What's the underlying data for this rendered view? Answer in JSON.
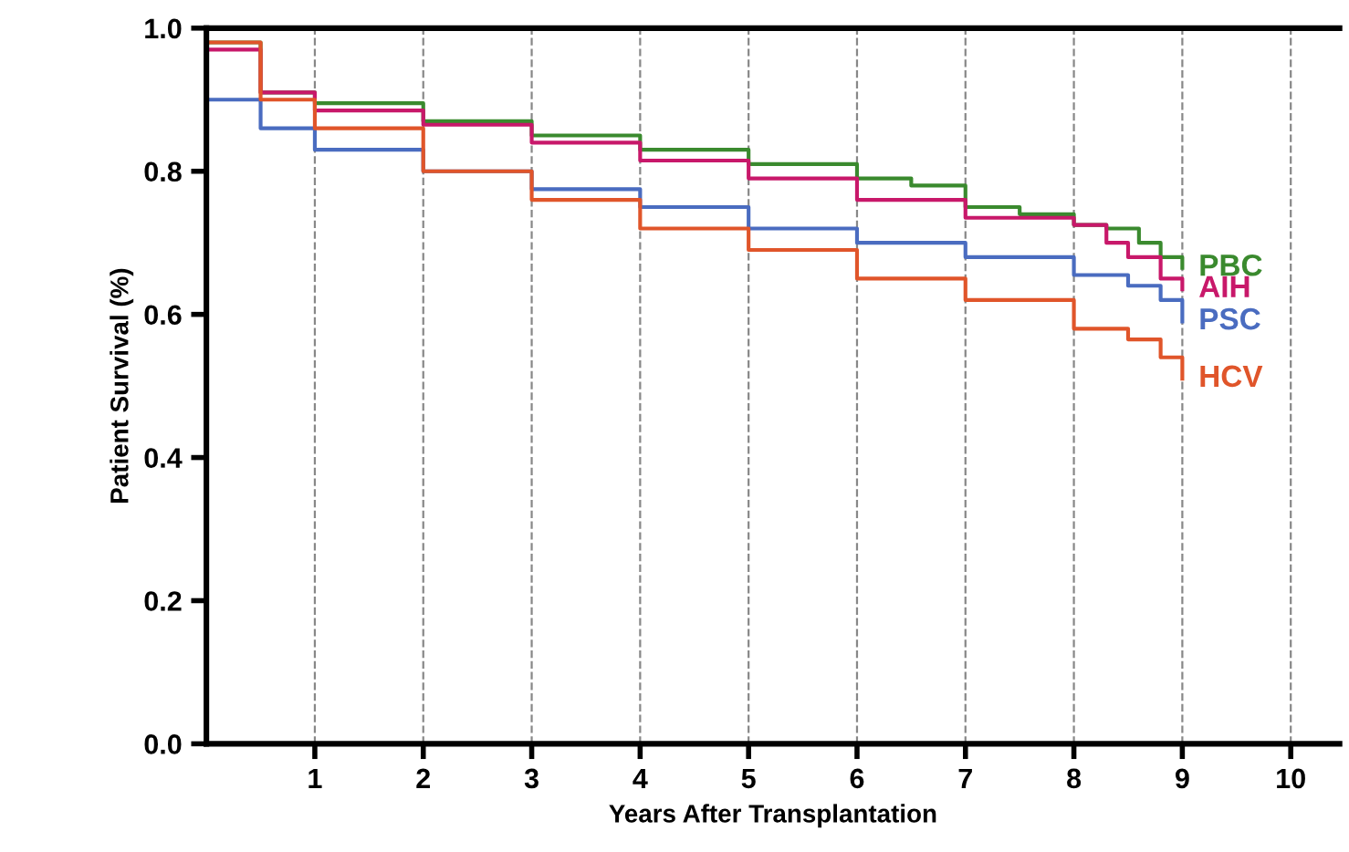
{
  "chart_data": {
    "type": "step",
    "xlabel": "Years After Transplantation",
    "ylabel": "Patient Survival (%)",
    "xlim": [
      0,
      10.45
    ],
    "ylim": [
      0,
      1.0
    ],
    "xticks": [
      1,
      2,
      3,
      4,
      5,
      6,
      7,
      8,
      9,
      10
    ],
    "yticks": [
      {
        "value": 0,
        "label": "0.0"
      },
      0.2,
      0.4,
      0.6,
      0.8,
      {
        "value": 1,
        "label": "1.0"
      }
    ],
    "grid": "x",
    "legend": false,
    "series": [
      {
        "name": "PBC",
        "color": "#3a8a2e",
        "x": [
          0,
          0.5,
          1,
          2,
          3,
          4,
          5,
          6,
          6.5,
          7,
          7.5,
          8,
          8.3,
          8.6,
          8.8,
          9
        ],
        "values": [
          0.98,
          0.91,
          0.895,
          0.87,
          0.85,
          0.83,
          0.81,
          0.79,
          0.78,
          0.75,
          0.74,
          0.725,
          0.72,
          0.7,
          0.68,
          0.665
        ]
      },
      {
        "name": "AIH",
        "color": "#c8186a",
        "x": [
          0,
          0.5,
          1,
          2,
          3,
          4,
          5,
          6,
          7,
          8,
          8.3,
          8.5,
          8.8,
          9
        ],
        "values": [
          0.97,
          0.91,
          0.885,
          0.865,
          0.84,
          0.815,
          0.79,
          0.76,
          0.735,
          0.725,
          0.7,
          0.68,
          0.65,
          0.635
        ]
      },
      {
        "name": "PSC",
        "color": "#4a6cc0",
        "x": [
          0,
          0.5,
          1,
          2,
          3,
          4,
          5,
          6,
          7,
          8,
          8.5,
          8.8,
          9
        ],
        "values": [
          0.9,
          0.86,
          0.83,
          0.8,
          0.775,
          0.75,
          0.72,
          0.7,
          0.68,
          0.655,
          0.64,
          0.62,
          0.59
        ]
      },
      {
        "name": "HCV",
        "color": "#e0552a",
        "x": [
          0,
          0.5,
          1,
          2,
          3,
          4,
          5,
          6,
          7,
          8,
          8.5,
          8.8,
          9
        ],
        "values": [
          0.98,
          0.9,
          0.86,
          0.8,
          0.76,
          0.72,
          0.69,
          0.65,
          0.62,
          0.58,
          0.565,
          0.54,
          0.51
        ]
      }
    ]
  }
}
